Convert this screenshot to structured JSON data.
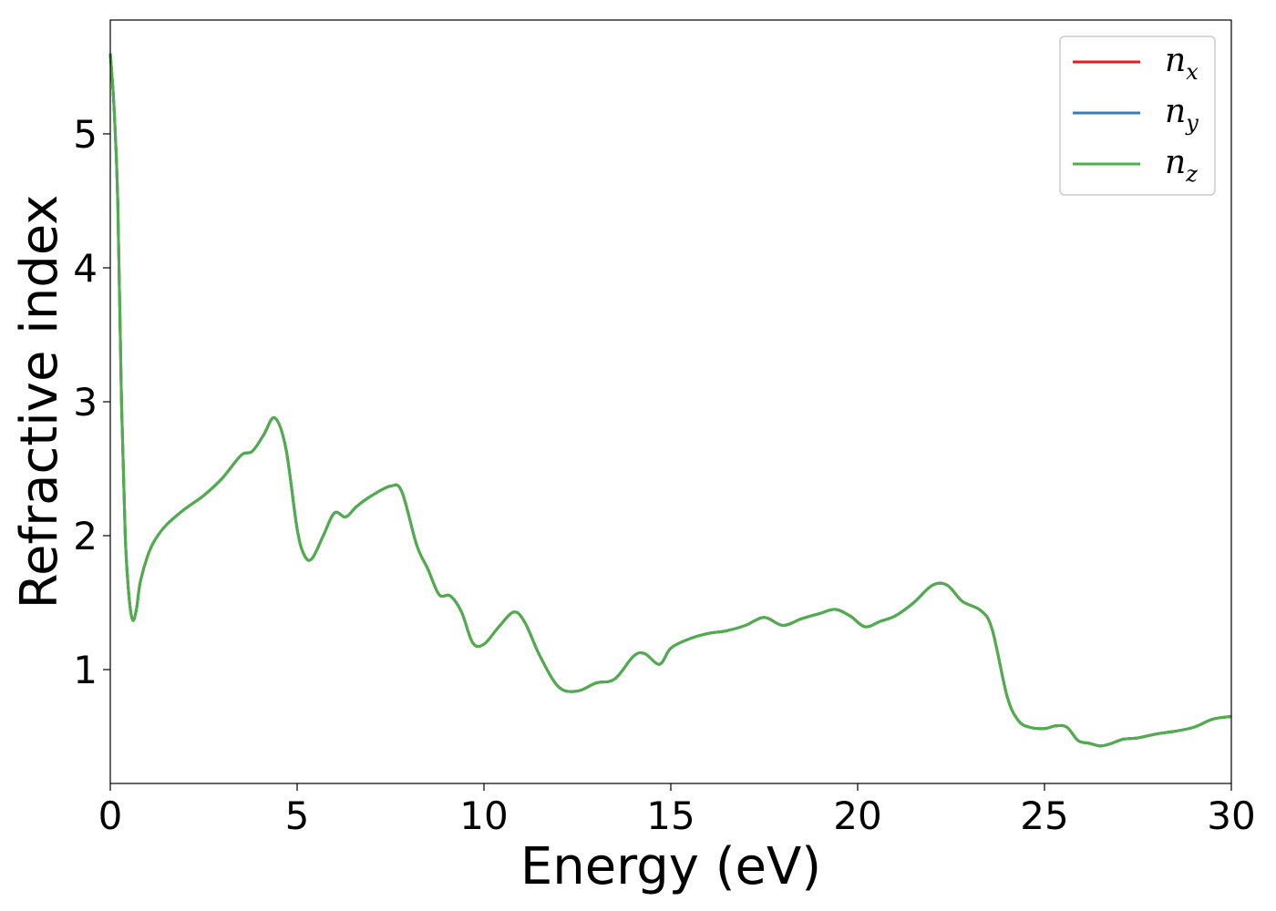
{
  "chart_data": {
    "type": "line",
    "title": "",
    "xlabel": "Energy (eV)",
    "ylabel": "Refractive index",
    "xlim": [
      0,
      30
    ],
    "ylim": [
      0.15,
      5.85
    ],
    "xticks": [
      "0",
      "5",
      "10",
      "15",
      "20",
      "25",
      "30"
    ],
    "yticks": [
      "1",
      "2",
      "3",
      "4",
      "5"
    ],
    "grid": false,
    "legend_position": "top-right",
    "series": [
      {
        "name_base": "n",
        "name_sub": "x",
        "color": "#e41a1c"
      },
      {
        "name_base": "n",
        "name_sub": "y",
        "color": "#377eb8"
      },
      {
        "name_base": "n",
        "name_sub": "z",
        "color": "#4daf4a"
      }
    ],
    "x": [
      0,
      0.1,
      0.2,
      0.3,
      0.4,
      0.5,
      0.6,
      0.7,
      0.8,
      1.0,
      1.2,
      1.5,
      2.0,
      2.5,
      3.0,
      3.5,
      3.8,
      4.1,
      4.4,
      4.7,
      5.0,
      5.2,
      5.4,
      5.7,
      6.0,
      6.3,
      6.6,
      7.0,
      7.5,
      7.8,
      8.2,
      8.5,
      8.8,
      9.1,
      9.4,
      9.7,
      10.0,
      10.4,
      10.8,
      11.1,
      11.5,
      12.0,
      12.5,
      13.0,
      13.5,
      14.0,
      14.3,
      14.7,
      15.0,
      15.5,
      16.0,
      16.5,
      17.0,
      17.5,
      18.0,
      18.5,
      19.0,
      19.4,
      19.8,
      20.2,
      20.6,
      21.0,
      21.5,
      22.0,
      22.4,
      22.8,
      23.3,
      23.6,
      24.0,
      24.3,
      24.6,
      25.0,
      25.3,
      25.6,
      25.9,
      26.2,
      26.5,
      26.8,
      27.1,
      27.5,
      28.0,
      28.5,
      29.0,
      29.5,
      30.0
    ],
    "y_x": [
      5.6,
      5.2,
      4.5,
      3.0,
      2.0,
      1.55,
      1.37,
      1.45,
      1.65,
      1.85,
      1.97,
      2.08,
      2.2,
      2.3,
      2.43,
      2.6,
      2.63,
      2.75,
      2.88,
      2.65,
      2.05,
      1.85,
      1.83,
      2.0,
      2.17,
      2.14,
      2.22,
      2.3,
      2.37,
      2.33,
      1.93,
      1.75,
      1.56,
      1.55,
      1.43,
      1.2,
      1.19,
      1.32,
      1.43,
      1.35,
      1.1,
      0.87,
      0.84,
      0.9,
      0.93,
      1.1,
      1.12,
      1.04,
      1.16,
      1.23,
      1.27,
      1.29,
      1.33,
      1.39,
      1.33,
      1.38,
      1.42,
      1.45,
      1.4,
      1.32,
      1.36,
      1.4,
      1.5,
      1.63,
      1.63,
      1.51,
      1.44,
      1.3,
      0.8,
      0.62,
      0.57,
      0.56,
      0.58,
      0.57,
      0.47,
      0.45,
      0.43,
      0.45,
      0.48,
      0.49,
      0.52,
      0.54,
      0.57,
      0.63,
      0.65
    ],
    "y_y": [
      5.6,
      5.2,
      4.5,
      3.0,
      2.0,
      1.55,
      1.37,
      1.45,
      1.65,
      1.85,
      1.97,
      2.08,
      2.2,
      2.3,
      2.43,
      2.6,
      2.63,
      2.75,
      2.88,
      2.65,
      2.05,
      1.85,
      1.83,
      2.0,
      2.17,
      2.14,
      2.22,
      2.3,
      2.37,
      2.33,
      1.93,
      1.75,
      1.56,
      1.55,
      1.43,
      1.2,
      1.19,
      1.32,
      1.43,
      1.35,
      1.1,
      0.87,
      0.84,
      0.9,
      0.93,
      1.1,
      1.12,
      1.04,
      1.16,
      1.23,
      1.27,
      1.29,
      1.33,
      1.39,
      1.33,
      1.38,
      1.42,
      1.45,
      1.4,
      1.32,
      1.36,
      1.4,
      1.5,
      1.63,
      1.63,
      1.51,
      1.44,
      1.3,
      0.8,
      0.62,
      0.57,
      0.56,
      0.58,
      0.57,
      0.47,
      0.45,
      0.43,
      0.45,
      0.48,
      0.49,
      0.52,
      0.54,
      0.57,
      0.63,
      0.65
    ],
    "y_z": [
      5.6,
      5.2,
      4.5,
      3.0,
      2.0,
      1.55,
      1.37,
      1.45,
      1.65,
      1.85,
      1.97,
      2.08,
      2.2,
      2.3,
      2.43,
      2.6,
      2.63,
      2.75,
      2.88,
      2.65,
      2.05,
      1.85,
      1.83,
      2.0,
      2.17,
      2.14,
      2.22,
      2.3,
      2.37,
      2.33,
      1.93,
      1.75,
      1.56,
      1.55,
      1.43,
      1.2,
      1.19,
      1.32,
      1.43,
      1.35,
      1.1,
      0.87,
      0.84,
      0.9,
      0.93,
      1.1,
      1.12,
      1.04,
      1.16,
      1.23,
      1.27,
      1.29,
      1.33,
      1.39,
      1.33,
      1.38,
      1.42,
      1.45,
      1.4,
      1.32,
      1.36,
      1.4,
      1.5,
      1.63,
      1.63,
      1.51,
      1.44,
      1.3,
      0.8,
      0.62,
      0.57,
      0.56,
      0.58,
      0.57,
      0.47,
      0.45,
      0.43,
      0.45,
      0.48,
      0.49,
      0.52,
      0.54,
      0.57,
      0.63,
      0.65
    ]
  }
}
